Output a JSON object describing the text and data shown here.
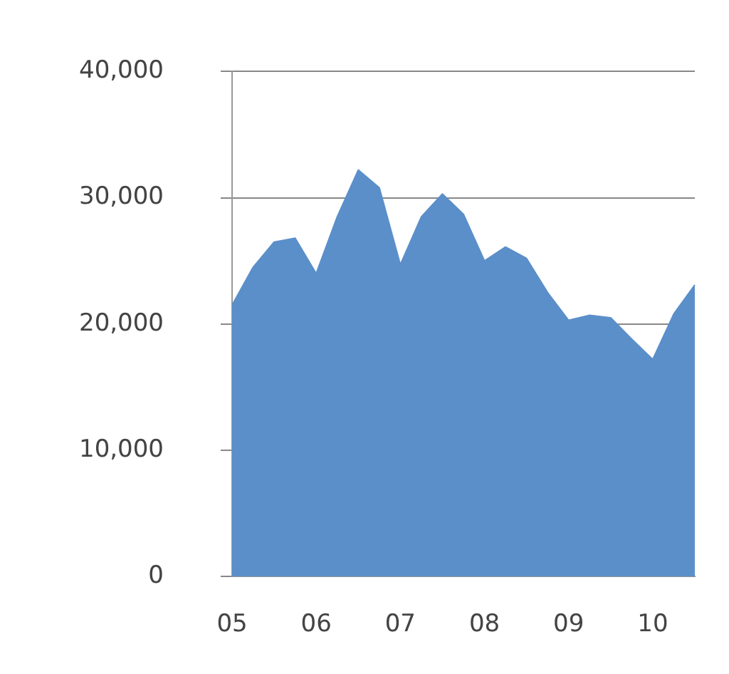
{
  "chart_data": {
    "type": "area",
    "categories": [
      "05",
      null,
      null,
      null,
      "06",
      null,
      null,
      null,
      "07",
      null,
      null,
      null,
      "08",
      null,
      null,
      null,
      "09",
      null,
      null,
      null,
      "10",
      null,
      null
    ],
    "series": [
      {
        "color": "#5b8fc9",
        "values": [
          21500,
          24500,
          26500,
          26800,
          24000,
          28500,
          32200,
          30800,
          24700,
          28500,
          30300,
          28700,
          25000,
          26100,
          25200,
          22500,
          20300,
          20700,
          20500,
          18800,
          17200,
          20800,
          23100
        ]
      }
    ],
    "ylim": [
      0,
      40000
    ],
    "yticks": [
      0,
      {
        "value": 10000,
        "label": "10,000"
      },
      {
        "value": 20000,
        "label": "20,000"
      },
      {
        "value": 30000,
        "label": "30,000"
      },
      {
        "value": 40000,
        "label": "40,000"
      }
    ],
    "grid": "y",
    "legend": false
  }
}
